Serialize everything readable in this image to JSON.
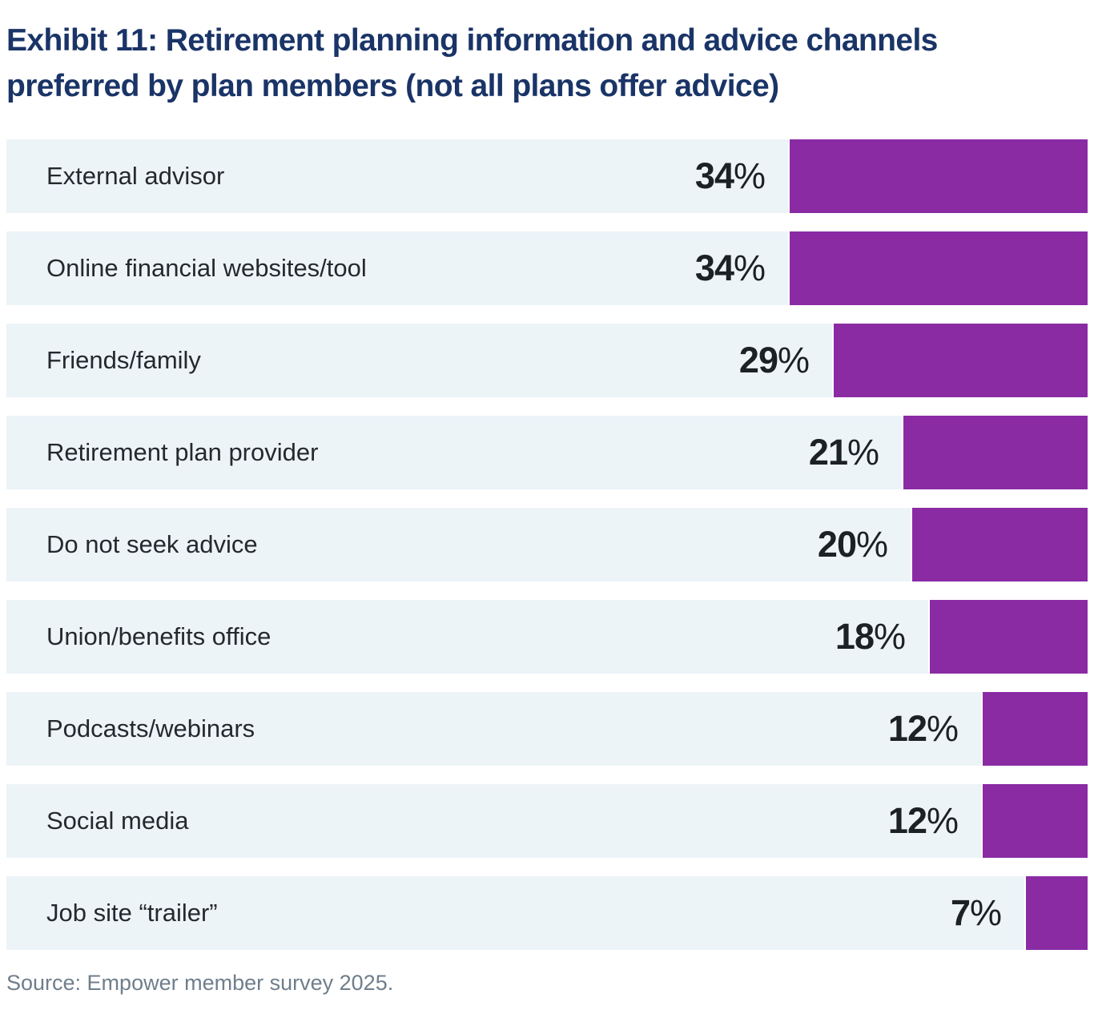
{
  "title_lines": [
    "Exhibit 11: Retirement planning information and advice channels",
    "preferred by plan members (not all plans offer advice)"
  ],
  "source": "Source: Empower member survey 2025.",
  "colors": {
    "bar": "#8A2BA4",
    "row_band": "#EDF4F8",
    "title": "#1A3467",
    "category_label": "#25292E",
    "value_label": "#1C2125",
    "source_text": "#6F7E8C"
  },
  "chart_data": {
    "type": "bar",
    "orientation": "horizontal",
    "title": "Exhibit 11: Retirement planning information and advice channels preferred by plan members (not all plans offer advice)",
    "unit": "%",
    "xlim": [
      0,
      34
    ],
    "grid": false,
    "legend": false,
    "bars_right_anchored": true,
    "categories": [
      "External advisor",
      "Online financial websites/tool",
      "Friends/family",
      "Retirement plan provider",
      "Do not seek advice",
      "Union/benefits office",
      "Podcasts/webinars",
      "Social media",
      "Job site “trailer”"
    ],
    "values": [
      34,
      34,
      29,
      21,
      20,
      18,
      12,
      12,
      7
    ],
    "value_labels": [
      "34%",
      "34%",
      "29%",
      "21%",
      "20%",
      "18%",
      "12%",
      "12%",
      "7%"
    ]
  }
}
